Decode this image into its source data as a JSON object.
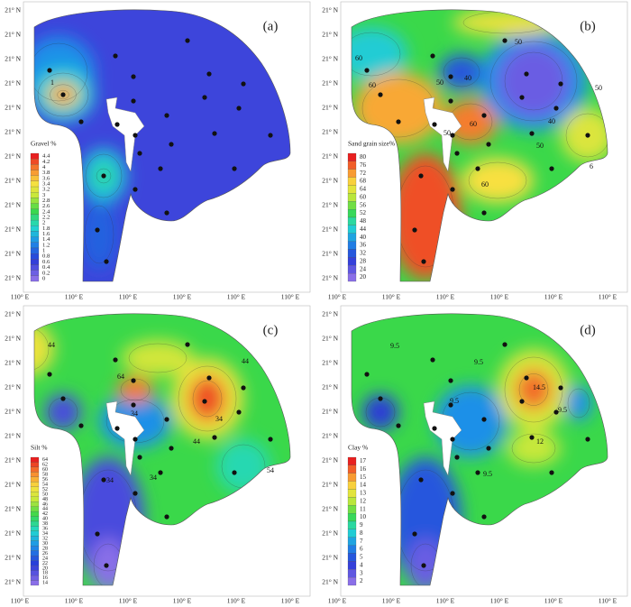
{
  "panels": [
    {
      "label": "(a)",
      "legend_title": "Gravel %",
      "legend_levels": [
        4.4,
        4.2,
        4,
        3.8,
        3.6,
        3.4,
        3.2,
        3,
        2.8,
        2.6,
        2.4,
        2.2,
        2,
        1.8,
        1.6,
        1.4,
        1.2,
        1,
        0.8,
        0.6,
        0.4,
        0.2,
        0
      ],
      "yticks": [
        "21° N",
        "21° N",
        "21° N",
        "21° N",
        "21° N",
        "21° N",
        "21° N",
        "21° N",
        "21° N",
        "21° N",
        "21° N",
        "21° N"
      ],
      "xticks": [
        "110° E",
        "110° E",
        "110° E",
        "110° E",
        "110° E",
        "110° E"
      ],
      "contour_labels": [
        1
      ]
    },
    {
      "label": "(b)",
      "legend_title": "Sand grain size%",
      "legend_levels": [
        80,
        76,
        72,
        68,
        64,
        60,
        56,
        52,
        48,
        44,
        40,
        36,
        32,
        28,
        24,
        20
      ],
      "yticks": [
        "21° N",
        "21° N",
        "21° N",
        "21° N",
        "21° N",
        "21° N",
        "21° N",
        "21° N",
        "21° N",
        "21° N",
        "21° N",
        "21° N"
      ],
      "xticks": [
        "110° E",
        "110° E",
        "110° E",
        "110° E",
        "110° E",
        "110° E"
      ],
      "contour_labels": [
        50,
        60,
        60,
        50,
        40,
        40,
        50,
        60,
        50,
        50,
        60,
        6
      ]
    },
    {
      "label": "(c)",
      "legend_title": "Silt %",
      "legend_levels": [
        64,
        62,
        60,
        58,
        56,
        54,
        52,
        50,
        48,
        46,
        44,
        42,
        40,
        38,
        36,
        34,
        32,
        30,
        28,
        26,
        24,
        22,
        20,
        18,
        16,
        14
      ],
      "yticks": [
        "21° N",
        "21° N",
        "21° N",
        "21° N",
        "21° N",
        "21° N",
        "21° N",
        "21° N",
        "21° N",
        "21° N",
        "21° N",
        "21° N"
      ],
      "xticks": [
        "110° E",
        "110° E",
        "110° E",
        "110° E",
        "110° E",
        "110° E"
      ],
      "contour_labels": [
        44,
        44,
        64,
        34,
        34,
        44,
        54,
        34,
        34
      ]
    },
    {
      "label": "(d)",
      "legend_title": "Clay %",
      "legend_levels": [
        17,
        16,
        15,
        14,
        13,
        12,
        11,
        10,
        9,
        8,
        7,
        6,
        5,
        4,
        3,
        2
      ],
      "yticks": [
        "21° N",
        "21° N",
        "21° N",
        "21° N",
        "21° N",
        "21° N",
        "21° N",
        "21° N",
        "21° N",
        "21° N",
        "21° N",
        "21° N"
      ],
      "xticks": [
        "110° E",
        "110° E",
        "110° E",
        "110° E",
        "110° E",
        "110° E"
      ],
      "contour_labels": [
        9.5,
        9.5,
        9.5,
        14.5,
        9.5,
        12,
        9.5
      ]
    }
  ]
}
